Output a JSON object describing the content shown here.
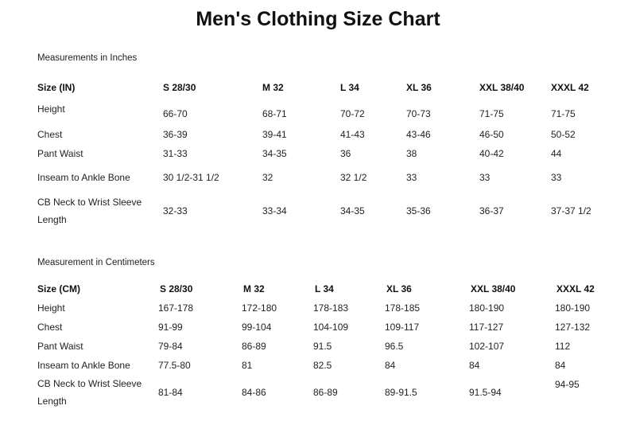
{
  "title": "Men's Clothing Size Chart",
  "inches": {
    "section_label": "Measurements in Inches",
    "headers": [
      "Size (IN)",
      "S  28/30",
      "M  32",
      "L  34",
      "XL  36",
      "XXL  38/40",
      "XXXL  42"
    ],
    "rows": [
      {
        "label": "Height",
        "values": [
          "66-70",
          "68-71",
          "70-72",
          "70-73",
          "71-75",
          "71-75"
        ]
      },
      {
        "label": "Chest",
        "values": [
          "36-39",
          "39-41",
          "41-43",
          "43-46",
          "46-50",
          "50-52"
        ]
      },
      {
        "label": "Pant Waist",
        "values": [
          "31-33",
          "34-35",
          "36",
          "38",
          "40-42",
          "44"
        ]
      },
      {
        "label": "Inseam to Ankle Bone",
        "values": [
          "30 1/2-31 1/2",
          "32",
          "32 1/2",
          "33",
          "33",
          "33"
        ]
      },
      {
        "label": "CB Neck to Wrist Sleeve Length",
        "values": [
          "32-33",
          "33-34",
          "34-35",
          "35-36",
          "36-37",
          "37-37 1/2"
        ]
      }
    ]
  },
  "centimeters": {
    "section_label": "Measurement in Centimeters",
    "headers": [
      "Size (CM)",
      "S  28/30",
      "M  32",
      "L  34",
      "XL  36",
      "XXL  38/40",
      "XXXL  42"
    ],
    "rows": [
      {
        "label": "Height",
        "values": [
          "167-178",
          "172-180",
          "178-183",
          "178-185",
          "180-190",
          "180-190"
        ]
      },
      {
        "label": "Chest",
        "values": [
          "91-99",
          "99-104",
          "104-109",
          "109-117",
          "117-127",
          "127-132"
        ]
      },
      {
        "label": "Pant Waist",
        "values": [
          "79-84",
          "86-89",
          "91.5",
          "96.5",
          "102-107",
          "112"
        ]
      },
      {
        "label": "Inseam to Ankle Bone",
        "values": [
          "77.5-80",
          "81",
          "82.5",
          "84",
          "84",
          "84"
        ]
      },
      {
        "label": "CB Neck to Wrist Sleeve Length",
        "values": [
          "81-84",
          "84-86",
          "86-89",
          "89-91.5",
          "91.5-94",
          "94-95"
        ]
      }
    ]
  }
}
